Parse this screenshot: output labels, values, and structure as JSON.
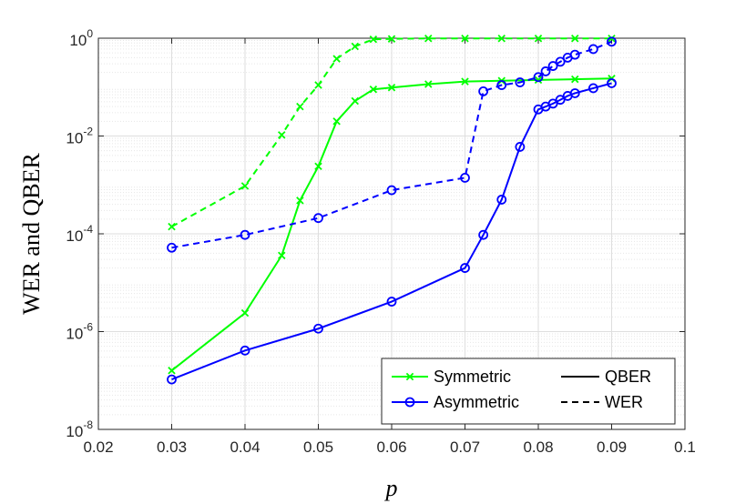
{
  "chart_data": {
    "type": "line",
    "xlabel": "p",
    "ylabel": "WER and QBER",
    "xlim": [
      0.02,
      0.1
    ],
    "ylim": [
      1e-08,
      1
    ],
    "yscale": "log",
    "grid": true,
    "minor_grid": true,
    "legend_position": "bottom-right",
    "x_ticks": [
      "0.02",
      "0.03",
      "0.04",
      "0.05",
      "0.06",
      "0.07",
      "0.08",
      "0.09",
      "0.1"
    ],
    "y_ticks": [
      {
        "base": "10",
        "exp": "-8",
        "value": 1e-08
      },
      {
        "base": "10",
        "exp": "-6",
        "value": 1e-06
      },
      {
        "base": "10",
        "exp": "-4",
        "value": 0.0001
      },
      {
        "base": "10",
        "exp": "-2",
        "value": 0.01
      },
      {
        "base": "10",
        "exp": "0",
        "value": 1
      }
    ],
    "legend": {
      "codes": [
        {
          "label": "Symmetric",
          "color": "#00ff00",
          "marker": "x"
        },
        {
          "label": "Asymmetric",
          "color": "#0000ff",
          "marker": "o"
        }
      ],
      "metrics": [
        {
          "label": "QBER",
          "dash": "solid"
        },
        {
          "label": "WER",
          "dash": "dashed"
        }
      ]
    },
    "series": [
      {
        "code": "Symmetric",
        "metric": "QBER",
        "color": "#00ff00",
        "marker": "x",
        "dash": "solid",
        "x": [
          0.03,
          0.04,
          0.045,
          0.0475,
          0.05,
          0.0525,
          0.055,
          0.0575,
          0.06,
          0.065,
          0.07,
          0.075,
          0.08,
          0.085,
          0.09
        ],
        "y": [
          1.6e-07,
          2.4e-06,
          3.6e-05,
          0.00048,
          0.0024,
          0.02,
          0.052,
          0.09,
          0.098,
          0.115,
          0.13,
          0.135,
          0.14,
          0.145,
          0.15
        ]
      },
      {
        "code": "Symmetric",
        "metric": "WER",
        "color": "#00ff00",
        "marker": "x",
        "dash": "dashed",
        "x": [
          0.03,
          0.04,
          0.045,
          0.0475,
          0.05,
          0.0525,
          0.055,
          0.0575,
          0.06,
          0.065,
          0.07,
          0.075,
          0.08,
          0.085,
          0.09
        ],
        "y": [
          0.00014,
          0.00095,
          0.0105,
          0.04,
          0.11,
          0.38,
          0.68,
          0.95,
          0.97,
          0.99,
          0.99,
          0.99,
          0.99,
          0.99,
          0.99
        ]
      },
      {
        "code": "Asymmetric",
        "metric": "QBER",
        "color": "#0000ff",
        "marker": "o",
        "dash": "solid",
        "x": [
          0.03,
          0.04,
          0.05,
          0.06,
          0.07,
          0.0725,
          0.075,
          0.0775,
          0.08,
          0.081,
          0.082,
          0.083,
          0.084,
          0.085,
          0.0875,
          0.09
        ],
        "y": [
          1.05e-07,
          4.1e-07,
          1.15e-06,
          4.1e-06,
          2e-05,
          9.5e-05,
          0.0005,
          0.006,
          0.035,
          0.04,
          0.046,
          0.055,
          0.066,
          0.075,
          0.095,
          0.12
        ]
      },
      {
        "code": "Asymmetric",
        "metric": "WER",
        "color": "#0000ff",
        "marker": "o",
        "dash": "dashed",
        "x": [
          0.03,
          0.04,
          0.05,
          0.06,
          0.07,
          0.0725,
          0.075,
          0.0775,
          0.08,
          0.081,
          0.082,
          0.083,
          0.084,
          0.085,
          0.0875,
          0.09
        ],
        "y": [
          5.2e-05,
          9.5e-05,
          0.00021,
          0.00078,
          0.0014,
          0.082,
          0.11,
          0.125,
          0.16,
          0.21,
          0.27,
          0.33,
          0.4,
          0.46,
          0.6,
          0.85
        ]
      }
    ]
  }
}
